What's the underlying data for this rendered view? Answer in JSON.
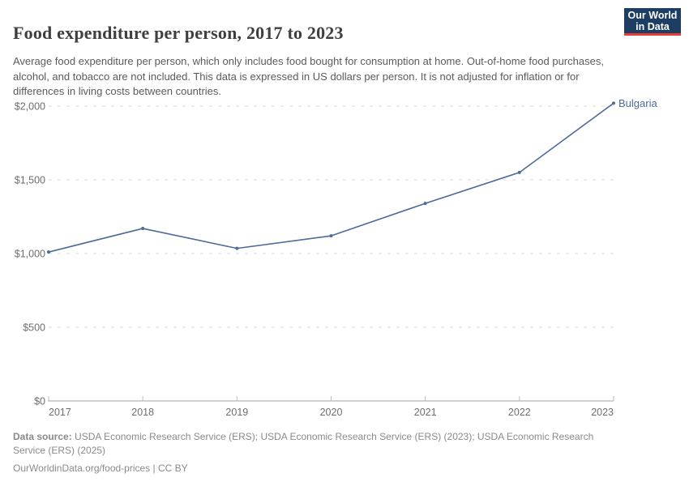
{
  "header": {
    "title": "Food expenditure per person, 2017 to 2023",
    "subtitle": "Average food expenditure per person, which only includes food bought for consumption at home. Out-of-home food purchases, alcohol, and tobacco are not included. This data is expressed in US dollars per person. It is not adjusted for inflation or for differences in living costs between countries.",
    "logo": {
      "line1": "Our World",
      "line2": "in Data",
      "bg_color": "#1d3d63",
      "accent_color": "#e63e36"
    }
  },
  "chart_data": {
    "type": "line",
    "title": "Food expenditure per person, 2017 to 2023",
    "x": [
      2017,
      2018,
      2019,
      2020,
      2021,
      2022,
      2023
    ],
    "series": [
      {
        "name": "Bulgaria",
        "values": [
          1010,
          1170,
          1035,
          1120,
          1340,
          1550,
          2020
        ],
        "color": "#4c6a9c"
      }
    ],
    "xlabel": "",
    "ylabel": "",
    "ylim": [
      0,
      2000
    ],
    "yticks": [
      {
        "value": 0,
        "label": "$0"
      },
      {
        "value": 500,
        "label": "$500"
      },
      {
        "value": 1000,
        "label": "$1,000"
      },
      {
        "value": 1500,
        "label": "$1,500"
      },
      {
        "value": 2000,
        "label": "$2,000"
      }
    ],
    "xticks": [
      "2017",
      "2018",
      "2019",
      "2020",
      "2021",
      "2022",
      "2023"
    ],
    "grid": "dashed-horizontal-gridlines",
    "legend_position": "end-of-line-label",
    "gridline_color": "#d9d9d9",
    "axis_color": "#a5a5a5"
  },
  "footer": {
    "data_source_label": "Data source:",
    "data_source_text": "USDA Economic Research Service (ERS); USDA Economic Research Service (ERS) (2023); USDA Economic Research Service (ERS) (2025)",
    "attribution": "OurWorldinData.org/food-prices | CC BY"
  }
}
